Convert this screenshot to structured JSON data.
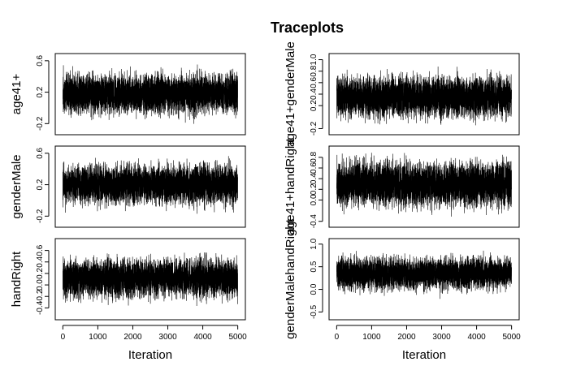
{
  "title": "Traceplots",
  "chart_data": [
    {
      "type": "line",
      "ylabel": "age41+",
      "xlabel": "",
      "xlim": [
        0,
        5000
      ],
      "xticks": [
        0,
        1000,
        2000,
        3000,
        4000,
        5000
      ],
      "ylim": [
        -0.3,
        0.65
      ],
      "yticks": [
        -0.2,
        0.2,
        0.6
      ],
      "ytick_labels": [
        "-0.2",
        "0.2",
        "0.6"
      ],
      "iterations": 5000,
      "trace_summary": {
        "center": 0.18,
        "spread": 0.12,
        "min": -0.25,
        "max": 0.6
      },
      "color": "#000000"
    },
    {
      "type": "line",
      "ylabel": "age41+genderMale",
      "xlabel": "",
      "xlim": [
        0,
        5000
      ],
      "xticks": [
        0,
        1000,
        2000,
        3000,
        4000,
        5000
      ],
      "ylim": [
        -0.25,
        1.05
      ],
      "yticks": [
        -0.2,
        0.2,
        0.4,
        0.6,
        0.8,
        1.0
      ],
      "ytick_labels": [
        "-0.2",
        "0.2",
        "0.4",
        "0.6",
        "0.8",
        "1.0"
      ],
      "iterations": 5000,
      "trace_summary": {
        "center": 0.35,
        "spread": 0.17,
        "min": -0.15,
        "max": 0.98
      },
      "color": "#000000"
    },
    {
      "type": "line",
      "ylabel": "genderMale",
      "xlabel": "",
      "xlim": [
        0,
        5000
      ],
      "xticks": [
        0,
        1000,
        2000,
        3000,
        4000,
        5000
      ],
      "ylim": [
        -0.3,
        0.65
      ],
      "yticks": [
        -0.2,
        0.2,
        0.6
      ],
      "ytick_labels": [
        "-0.2",
        "0.2",
        "0.6"
      ],
      "iterations": 5000,
      "trace_summary": {
        "center": 0.2,
        "spread": 0.12,
        "min": -0.27,
        "max": 0.6
      },
      "color": "#000000"
    },
    {
      "type": "line",
      "ylabel": "age41+handRight",
      "xlabel": "",
      "xlim": [
        0,
        5000
      ],
      "xticks": [
        0,
        1000,
        2000,
        3000,
        4000,
        5000
      ],
      "ylim": [
        -0.45,
        0.95
      ],
      "yticks": [
        -0.4,
        0.0,
        0.2,
        0.4,
        0.6,
        0.8
      ],
      "ytick_labels": [
        "-0.4",
        "0.0",
        "0.2",
        "0.4",
        "0.6",
        "0.8"
      ],
      "iterations": 5000,
      "trace_summary": {
        "center": 0.3,
        "spread": 0.2,
        "min": -0.4,
        "max": 0.9
      },
      "color": "#000000"
    },
    {
      "type": "line",
      "ylabel": "handRight",
      "xlabel": "Iteration",
      "xlim": [
        0,
        5000
      ],
      "xticks": [
        0,
        1000,
        2000,
        3000,
        4000,
        5000
      ],
      "ylim": [
        -0.55,
        0.75
      ],
      "yticks": [
        -0.4,
        -0.2,
        0.0,
        0.2,
        0.4,
        0.6
      ],
      "ytick_labels": [
        "-0.4",
        "-0.2",
        "0.0",
        "0.2",
        "0.4",
        "0.6"
      ],
      "iterations": 5000,
      "trace_summary": {
        "center": 0.12,
        "spread": 0.16,
        "min": -0.5,
        "max": 0.7
      },
      "color": "#000000"
    },
    {
      "type": "line",
      "ylabel": "genderMalehandRight",
      "xlabel": "Iteration",
      "xlim": [
        0,
        5000
      ],
      "xticks": [
        0,
        1000,
        2000,
        3000,
        4000,
        5000
      ],
      "ylim": [
        -0.6,
        1.05
      ],
      "yticks": [
        -0.5,
        0.0,
        0.5,
        1.0
      ],
      "ytick_labels": [
        "-0.5",
        "0.0",
        "0.5",
        "1.0"
      ],
      "iterations": 5000,
      "trace_summary": {
        "center": 0.35,
        "spread": 0.17,
        "min": -0.52,
        "max": 0.92
      },
      "color": "#000000"
    }
  ]
}
